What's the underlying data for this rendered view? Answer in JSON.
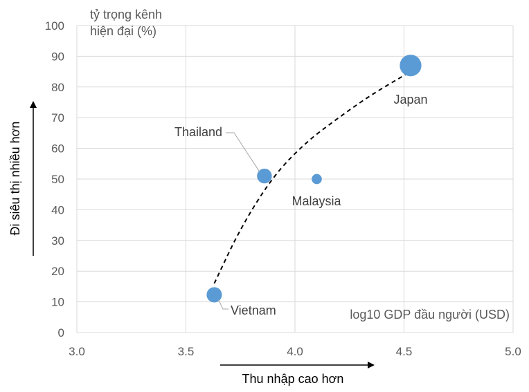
{
  "chart_data": {
    "type": "scatter",
    "x_range": [
      3.0,
      5.0
    ],
    "y_range": [
      0,
      100
    ],
    "x_ticks": [
      "3.0",
      "3.5",
      "4.0",
      "4.5",
      "5.0"
    ],
    "y_ticks": [
      "0",
      "10",
      "20",
      "30",
      "40",
      "50",
      "60",
      "70",
      "80",
      "90",
      "100"
    ],
    "grid": true,
    "y_unit_label_line1": "tỷ trọng kênh",
    "y_unit_label_line2": "hiện đại (%)",
    "x_axis_note": "log10 GDP đầu người (USD)",
    "xlabel": "Thu nhập cao hơn",
    "ylabel": "Đi siêu thị nhiều hơn",
    "bubble_color": "#5B9BD5",
    "points": [
      {
        "label": "Vietnam",
        "x": 3.63,
        "y": 12.3,
        "size": 1.6
      },
      {
        "label": "Thailand",
        "x": 3.86,
        "y": 51,
        "size": 1.5
      },
      {
        "label": "Malaysia",
        "x": 4.1,
        "y": 50,
        "size": 0.7
      },
      {
        "label": "Japan",
        "x": 4.53,
        "y": 87,
        "size": 3.2
      }
    ],
    "trend": {
      "style": "dashed",
      "color": "#000000",
      "x": [
        3.63,
        3.75,
        3.9,
        4.05,
        4.2,
        4.35,
        4.53
      ],
      "y": [
        16,
        34,
        51,
        62,
        70,
        77.5,
        85
      ]
    }
  }
}
